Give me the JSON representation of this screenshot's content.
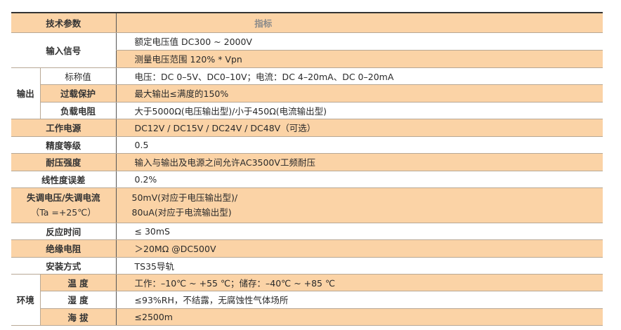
{
  "header": {
    "param": "技术参数",
    "spec": "指标"
  },
  "rows": {
    "input": {
      "label": "输入信号",
      "values": [
        "额定电压值 DC300 ~ 2000V",
        "测量电压范围 120% * Vpn"
      ]
    },
    "output": {
      "label": "输出",
      "items": [
        {
          "label": "标称值",
          "value": "电压：DC 0–5V、DC0–10V；电流：DC 4–20mA、DC 0–20mA"
        },
        {
          "label": "过载保护",
          "value": "最大输出≤满度的150%"
        },
        {
          "label": "负载电阻",
          "value": "大于5000Ω(电压输出型)/小于450Ω(电流输出型)"
        }
      ]
    },
    "power": {
      "label": "工作电源",
      "value": "DC12V / DC15V / DC24V / DC48V（可选）"
    },
    "accuracy": {
      "label": "精度等级",
      "value": "0.5"
    },
    "withstand": {
      "label": "耐压强度",
      "value": "输入与输出及电源之间允许AC3500V工频耐压"
    },
    "linearity": {
      "label": "线性度误差",
      "value": "0.2%"
    },
    "offset": {
      "label": "失调电压/失调电流",
      "label2": "（Ta =+25℃）",
      "value": "50mV(对应于电压输出型)/",
      "value2": "80uA(对应于电流输出型)"
    },
    "response": {
      "label": "反应时间",
      "value": "≤ 30mS"
    },
    "insulation": {
      "label": "绝缘电阻",
      "value": "＞20MΩ @DC500V"
    },
    "mounting": {
      "label": "安装方式",
      "value": "TS35导轨"
    },
    "env": {
      "label": "环境",
      "items": [
        {
          "label": "温 度",
          "value": "工作：–10℃ ~ +55 ℃；储存：–40℃ ~ +85 ℃"
        },
        {
          "label": "湿 度",
          "value": "≤93%RH，不结露，无腐蚀性气体场所"
        },
        {
          "label": "海 拔",
          "value": "≤2500m"
        }
      ]
    }
  },
  "colors": {
    "highlight": "#fbd3a6",
    "border": "#b8a895"
  }
}
